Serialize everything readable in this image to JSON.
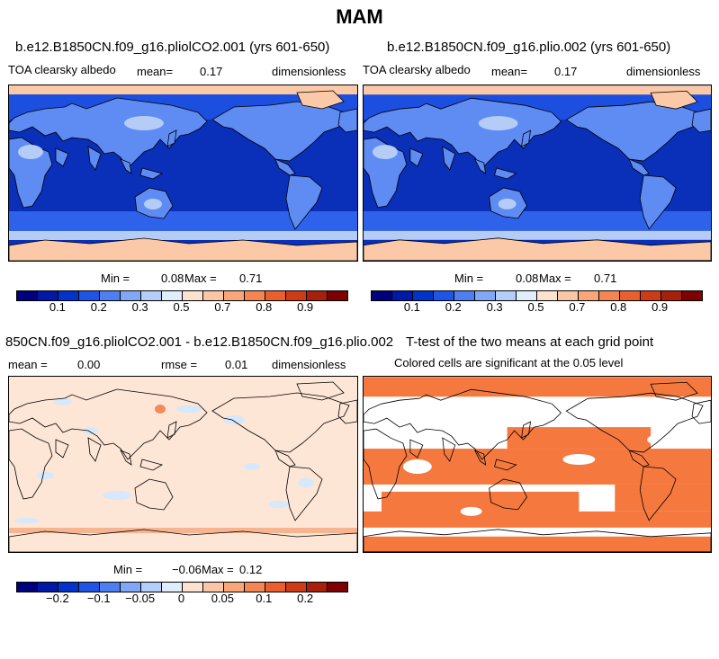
{
  "figure": {
    "season": "MAM"
  },
  "panels": {
    "top_left": {
      "title": "b.e12.B1850CN.f09_g16.pliolCO2.001 (yrs 601-650)",
      "variable": "TOA clearsky albedo",
      "mean_label": "mean=",
      "mean_value": "0.17",
      "units": "dimensionless",
      "min_label": "Min =",
      "min_value": "0.08",
      "max_label": "Max =",
      "max_value": "0.71"
    },
    "top_right": {
      "title": "b.e12.B1850CN.f09_g16.plio.002 (yrs 601-650)",
      "variable": "TOA clearsky albedo",
      "mean_label": "mean=",
      "mean_value": "0.17",
      "units": "dimensionless",
      "min_label": "Min =",
      "min_value": "0.08",
      "max_label": "Max =",
      "max_value": "0.71"
    },
    "bottom_left": {
      "title": "850CN.f09_g16.pliolCO2.001 - b.e12.B1850CN.f09_g16.plio.002",
      "mean_label": "mean =",
      "mean_value": "0.00",
      "rmse_label": "rmse =",
      "rmse_value": "0.01",
      "units": "dimensionless",
      "min_label": "Min =",
      "min_value": "−0.06",
      "max_label": "Max =",
      "max_value": "0.12"
    },
    "bottom_right": {
      "title": "T-test of the two means at each grid point",
      "subtitle": "Colored cells are significant at the 0.05 level"
    }
  },
  "colorbars": {
    "albedo": {
      "colors": [
        "#00007f",
        "#0018a8",
        "#0033cc",
        "#1f55e6",
        "#4d7ff2",
        "#80a8f7",
        "#b3cefa",
        "#e0edfc",
        "#fde3cf",
        "#fbc6a6",
        "#f9a67b",
        "#f58552",
        "#e9602e",
        "#cf3b17",
        "#a9200a",
        "#7f0000"
      ],
      "labels": [
        "0.1",
        "0.2",
        "0.3",
        "0.5",
        "0.7",
        "0.8",
        "0.9"
      ]
    },
    "diff": {
      "colors": [
        "#00007f",
        "#0018a8",
        "#0033cc",
        "#1f55e6",
        "#4d7ff2",
        "#80a8f7",
        "#b3cefa",
        "#e0edfc",
        "#fde3cf",
        "#fbc6a6",
        "#f9a67b",
        "#f58552",
        "#e9602e",
        "#cf3b17",
        "#a9200a",
        "#7f0000"
      ],
      "labels": [
        "−0.2",
        "−0.1",
        "−0.05",
        "0",
        "0.05",
        "0.1",
        "0.2"
      ]
    }
  },
  "map_colors": {
    "ocean_deep": "#0a2fb8",
    "ocean_mid": "#1c4fe0",
    "ocean_band": "#2f62ea",
    "land": "#5e8cf2",
    "desert": "#b5cdf6",
    "ice": "#fbc8a8",
    "diff_bg": "#fde6d6",
    "diff_blue": "#d6e8fb",
    "diff_red": "#f28a5a",
    "sig": "#f5793f"
  }
}
